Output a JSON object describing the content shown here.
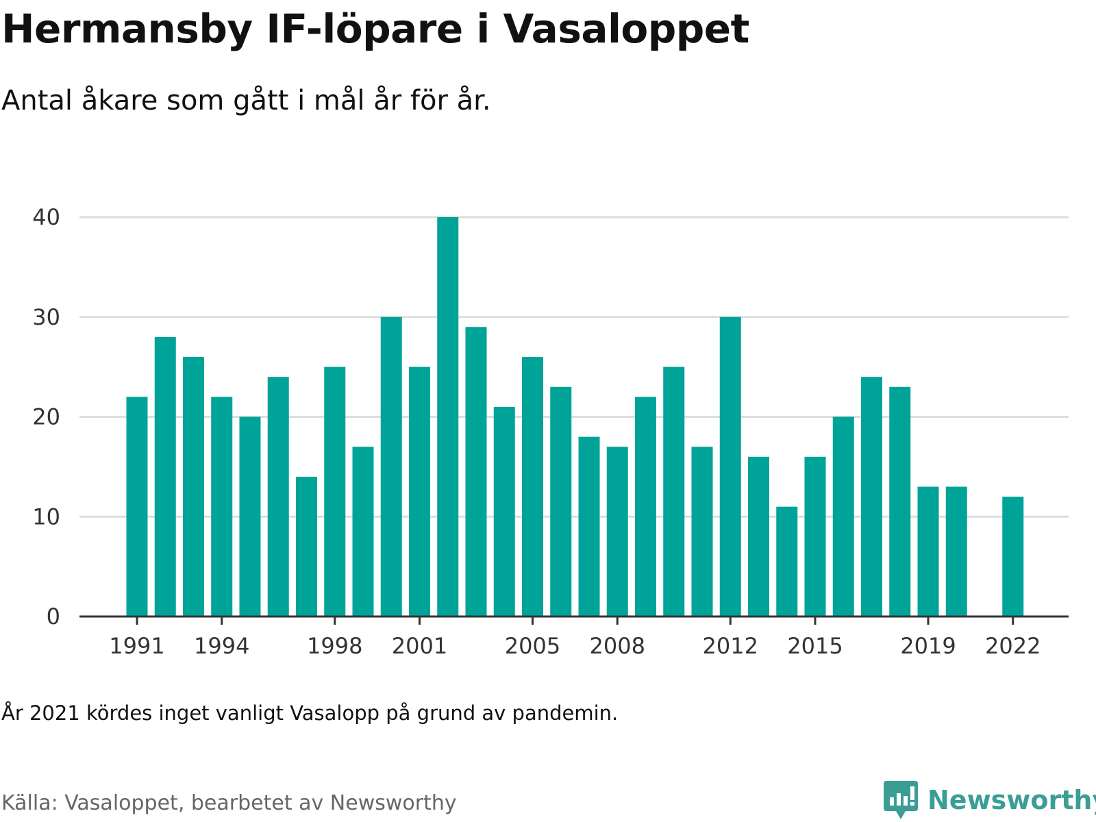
{
  "title": "Hermansby IF-löpare i Vasaloppet",
  "subtitle": "Antal åkare som gått i mål år för år.",
  "note": "År 2021 kördes inget vanligt Vasalopp på grund av pandemin.",
  "source": "Källa: Vasaloppet, bearbetet av Newsworthy",
  "brand": {
    "name": "Newsworthy",
    "icon": "newsworthy-logo-icon",
    "color": "#3a9e96"
  },
  "chart_data": {
    "type": "bar",
    "categories": [
      1991,
      1992,
      1993,
      1994,
      1995,
      1996,
      1997,
      1998,
      1999,
      2000,
      2001,
      2002,
      2003,
      2004,
      2005,
      2006,
      2007,
      2008,
      2009,
      2010,
      2011,
      2012,
      2013,
      2014,
      2015,
      2016,
      2017,
      2018,
      2019,
      2020,
      2021,
      2022
    ],
    "values": [
      22,
      28,
      26,
      22,
      20,
      24,
      14,
      25,
      17,
      30,
      25,
      40,
      29,
      21,
      26,
      23,
      18,
      17,
      22,
      25,
      17,
      30,
      16,
      11,
      16,
      20,
      24,
      23,
      13,
      13,
      null,
      12
    ],
    "x_tick_labels": [
      "1991",
      "1994",
      "1998",
      "2001",
      "2005",
      "2008",
      "2012",
      "2015",
      "2019",
      "2022"
    ],
    "y_ticks": [
      0,
      10,
      20,
      30,
      40
    ],
    "ylim": [
      0,
      40
    ],
    "title": "Hermansby IF-löpare i Vasaloppet",
    "xlabel": "",
    "ylabel": "",
    "grid": true,
    "legend": "none",
    "bar_color": "#00a398",
    "grid_color": "#dddddd",
    "axis_color": "#333333"
  }
}
